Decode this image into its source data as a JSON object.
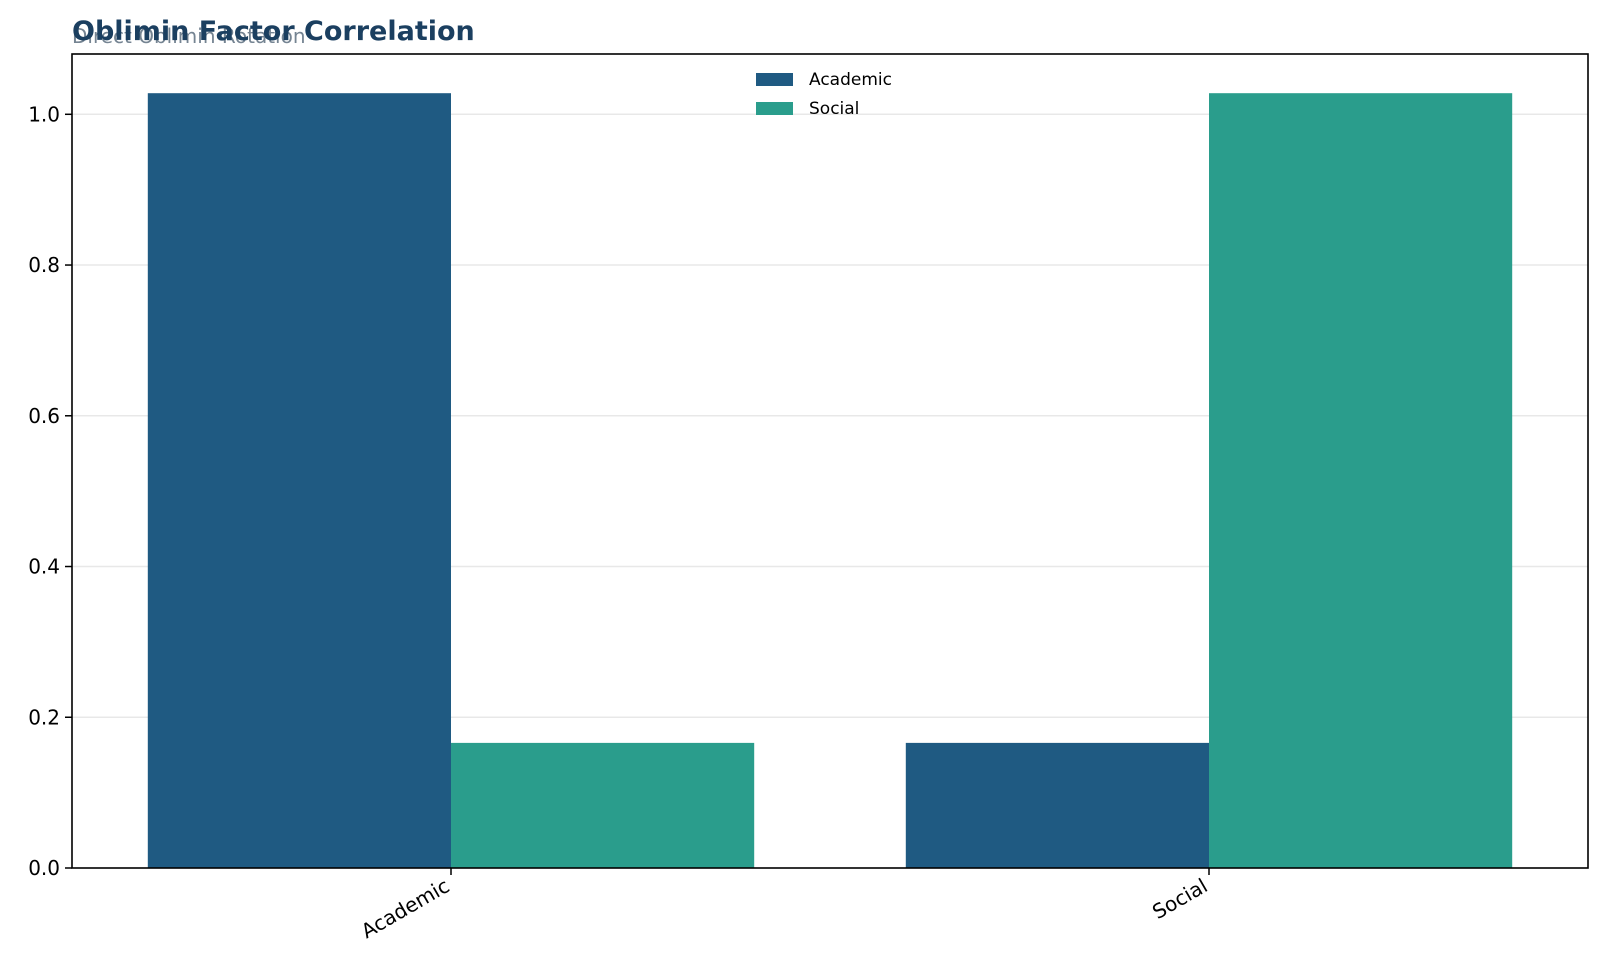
{
  "chart_data": {
    "type": "bar",
    "title": "Oblimin Factor Correlation",
    "subtitle": "Direct Oblimin Rotation",
    "xlabel": "",
    "ylabel": "",
    "categories": [
      "Academic",
      "Social"
    ],
    "series": [
      {
        "name": "Academic",
        "color": "#1f5a82",
        "values": [
          1.028,
          0.166
        ]
      },
      {
        "name": "Social",
        "color": "#2a9d8c",
        "values": [
          0.166,
          1.028
        ]
      }
    ],
    "ylim": [
      0,
      1.08
    ],
    "yticks": [
      "0.0",
      "0.2",
      "0.4",
      "0.6",
      "0.8",
      "1.0"
    ],
    "ytick_values": [
      0.0,
      0.2,
      0.4,
      0.6,
      0.8,
      1.0
    ],
    "grid": "horizontal",
    "legend_position": "top-center"
  }
}
